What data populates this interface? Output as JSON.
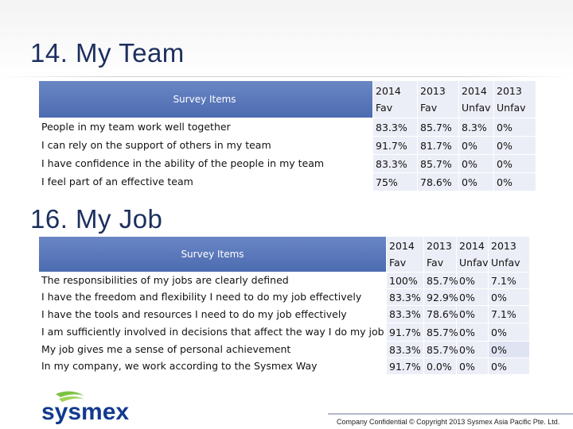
{
  "colors": {
    "title": "#1c2f5e",
    "header_band": "#4c6bb0",
    "cell_bg": "#eceef7",
    "logo_green": "#7cc242",
    "logo_blue": "#123a8f"
  },
  "section1": {
    "title": "14. My Team",
    "header": {
      "items": "Survey Items",
      "cols": [
        [
          "2014",
          "Fav"
        ],
        [
          "2013",
          "Fav"
        ],
        [
          "2014",
          "Unfav"
        ],
        [
          "2013",
          "Unfav"
        ]
      ]
    },
    "rows": [
      {
        "item": "People in my team work well together",
        "values": [
          "83.3%",
          "85.7%",
          "8.3%",
          "0%"
        ]
      },
      {
        "item": "I can rely on the support of others in my team",
        "values": [
          "91.7%",
          "81.7%",
          "0%",
          "0%"
        ]
      },
      {
        "item": "I have confidence in the ability of the people in my team",
        "values": [
          "83.3%",
          "85.7%",
          "0%",
          "0%"
        ]
      },
      {
        "item": "I feel part of an effective team",
        "values": [
          "75%",
          "78.6%",
          "0%",
          "0%"
        ]
      }
    ]
  },
  "section2": {
    "title": "16. My Job",
    "header": {
      "items": "Survey Items",
      "cols": [
        [
          "2014",
          "Fav"
        ],
        [
          "2013",
          "Fav"
        ],
        [
          "2014",
          "Unfav"
        ],
        [
          "2013",
          "Unfav"
        ]
      ]
    },
    "rows": [
      {
        "item": "The responsibilities of my jobs are clearly defined",
        "values": [
          "100%",
          "85.7%",
          "0%",
          "7.1%"
        ]
      },
      {
        "item": "I have the freedom and flexibility I need to do my job effectively",
        "values": [
          "83.3%",
          "92.9%",
          "0%",
          "0%"
        ]
      },
      {
        "item": "I have the tools and resources I need to do my job effectively",
        "values": [
          "83.3%",
          "78.6%",
          "0%",
          "7.1%"
        ]
      },
      {
        "item": "I am sufficiently involved in decisions that affect the way I do my job",
        "values": [
          "91.7%",
          "85.7%",
          "0%",
          "0%"
        ]
      },
      {
        "item": "My job gives me a sense of personal achievement",
        "values": [
          "83.3%",
          "85.7%",
          "0%",
          "0%"
        ]
      },
      {
        "item": "In my company, we work according to the Sysmex Way",
        "values": [
          "91.7%",
          "0.0%",
          "0%",
          "0%"
        ]
      }
    ]
  },
  "footer": {
    "logo_text": "sysmex",
    "copyright": "Company Confidential © Copyright 2013 Sysmex Asia Pacific Pte. Ltd."
  }
}
